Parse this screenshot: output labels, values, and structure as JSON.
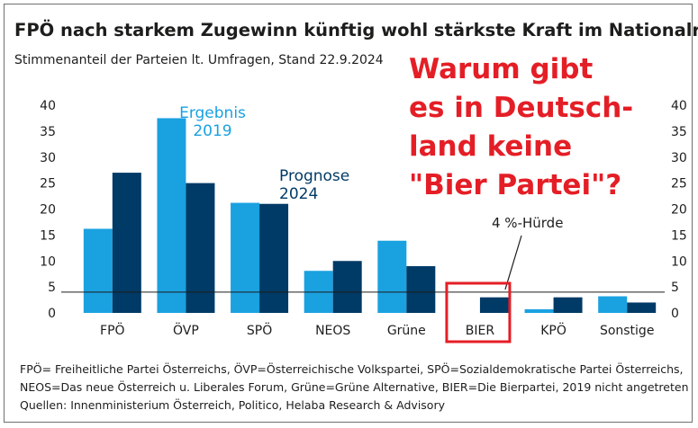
{
  "title": "FPÖ nach starkem Zugewinn künftig wohl stärkste Kraft im Nationalrat",
  "subtitle": "Stimmenanteil der Parteien lt. Umfragen, Stand 22.9.2024",
  "overlay_lines": [
    "Warum gibt",
    "es in Deutsch-",
    "land keine",
    "\"Bier Partei\"?"
  ],
  "footnotes": [
    "FPÖ= Freiheitliche Partei Österreichs, ÖVP=Österreichische Volkspartei, SPÖ=Sozialdemokratische Partei Österreichs,",
    "NEOS=Das neue Österreich u. Liberales Forum, Grüne=Grüne Alternative, BIER=Die Bierpartei, 2019 nicht angetreten",
    "Quellen: Innenministerium Österreich, Politico, Helaba Research & Advisory"
  ],
  "colors": {
    "ergebnis": "#1aa1e0",
    "prognose": "#003a66",
    "highlight": "#e41e26",
    "text": "#1d1d1b"
  },
  "chart_data": {
    "type": "bar",
    "categories": [
      "FPÖ",
      "ÖVP",
      "SPÖ",
      "NEOS",
      "Grüne",
      "BIER",
      "KPÖ",
      "Sonstige"
    ],
    "series": [
      {
        "name": "Ergebnis 2019",
        "values": [
          16.2,
          37.5,
          21.2,
          8.1,
          13.9,
          null,
          0.7,
          3.2
        ]
      },
      {
        "name": "Prognose 2024",
        "values": [
          27.0,
          25.0,
          21.0,
          10.0,
          9.0,
          3.0,
          3.0,
          2.0
        ]
      }
    ],
    "series_labels": [
      [
        "Ergebnis",
        "2019"
      ],
      [
        "Prognose",
        "2024"
      ]
    ],
    "ylim": [
      0,
      40
    ],
    "yticks": [
      0,
      5,
      10,
      15,
      20,
      25,
      30,
      35,
      40
    ],
    "ytick_labels": [
      "0",
      "5",
      "10",
      "15",
      "20",
      "25",
      "30",
      "35",
      "40"
    ],
    "threshold": {
      "value": 4,
      "label": "4 %-Hürde"
    },
    "highlighted_category": "BIER",
    "legend": "inline labels above bars",
    "xlabel": "",
    "ylabel": ""
  }
}
